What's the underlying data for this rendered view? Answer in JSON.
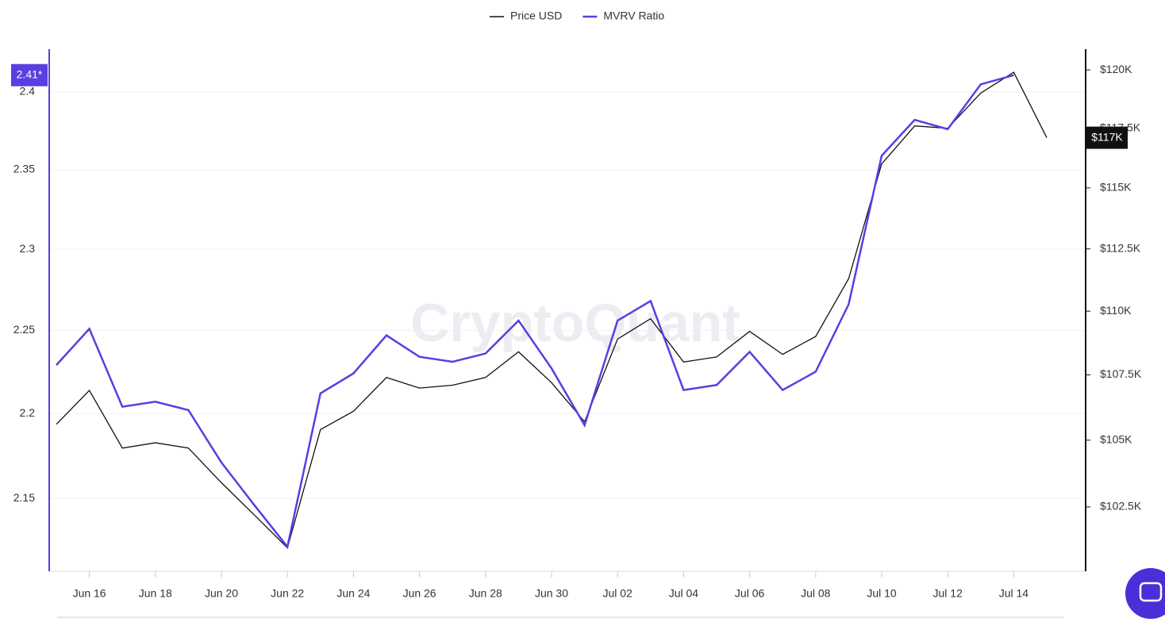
{
  "chart_data": {
    "type": "line",
    "watermark": "CryptoQuant",
    "categories": [
      null,
      "Jun 16",
      null,
      "Jun 18",
      null,
      "Jun 20",
      null,
      "Jun 22",
      null,
      "Jun 24",
      null,
      "Jun 26",
      null,
      "Jun 28",
      null,
      "Jun 30",
      null,
      "Jul 02",
      null,
      "Jul 04",
      null,
      "Jul 06",
      null,
      "Jul 08",
      null,
      "Jul 10",
      null,
      "Jul 12",
      null,
      "Jul 14",
      null
    ],
    "series": [
      {
        "name": "Price USD",
        "color": "#111111",
        "axis": "y2",
        "values": [
          105600,
          106900,
          104700,
          104900,
          104700,
          103400,
          102200,
          101000,
          105400,
          106100,
          107400,
          106990,
          107100,
          107400,
          108400,
          107200,
          105700,
          108900,
          109700,
          108000,
          108200,
          109200,
          108300,
          109000,
          111300,
          116000,
          117600,
          117500,
          119000,
          119900,
          117100
        ],
        "value_labels": [
          null,
          null,
          null,
          null,
          null,
          null,
          null,
          null,
          null,
          null,
          null,
          null,
          null,
          null,
          null,
          null,
          null,
          null,
          null,
          null,
          null,
          null,
          null,
          null,
          null,
          null,
          null,
          null,
          null,
          null,
          "$117K"
        ]
      },
      {
        "name": "MVRV Ratio",
        "color": "#5a3ee0",
        "values": [
          2.229,
          2.251,
          2.204,
          2.207,
          2.202,
          2.171,
          2.146,
          2.122,
          2.212,
          2.224,
          2.247,
          2.234,
          2.231,
          2.236,
          2.256,
          2.227,
          2.193,
          2.256,
          2.268,
          2.214,
          2.217,
          2.237,
          2.214,
          2.225,
          2.266,
          2.359,
          2.382,
          2.376,
          2.405,
          2.411,
          null
        ],
        "value_labels": [
          null,
          null,
          null,
          null,
          null,
          null,
          null,
          null,
          null,
          null,
          null,
          null,
          null,
          null,
          null,
          null,
          null,
          null,
          null,
          null,
          null,
          null,
          null,
          null,
          null,
          null,
          null,
          null,
          null,
          "2.41*",
          null
        ]
      }
    ],
    "ylim": [
      2.108,
      2.428
    ],
    "ylog": true,
    "yticks": [
      2.15,
      2.2,
      2.25,
      2.3,
      2.35,
      2.4
    ],
    "y2lim": [
      100150,
      120900
    ],
    "y2log": true,
    "y2ticks": [
      {
        "value": 102500,
        "label": "$102.5K"
      },
      {
        "value": 105000,
        "label": "$105K"
      },
      {
        "value": 107500,
        "label": "$107.5K"
      },
      {
        "value": 110000,
        "label": "$110K"
      },
      {
        "value": 112500,
        "label": "$112.5K"
      },
      {
        "value": 115000,
        "label": "$115K"
      },
      {
        "value": 117500,
        "label": "$117.5K"
      },
      {
        "value": 120000,
        "label": "$120K"
      }
    ],
    "grid": true,
    "legend": "top"
  }
}
